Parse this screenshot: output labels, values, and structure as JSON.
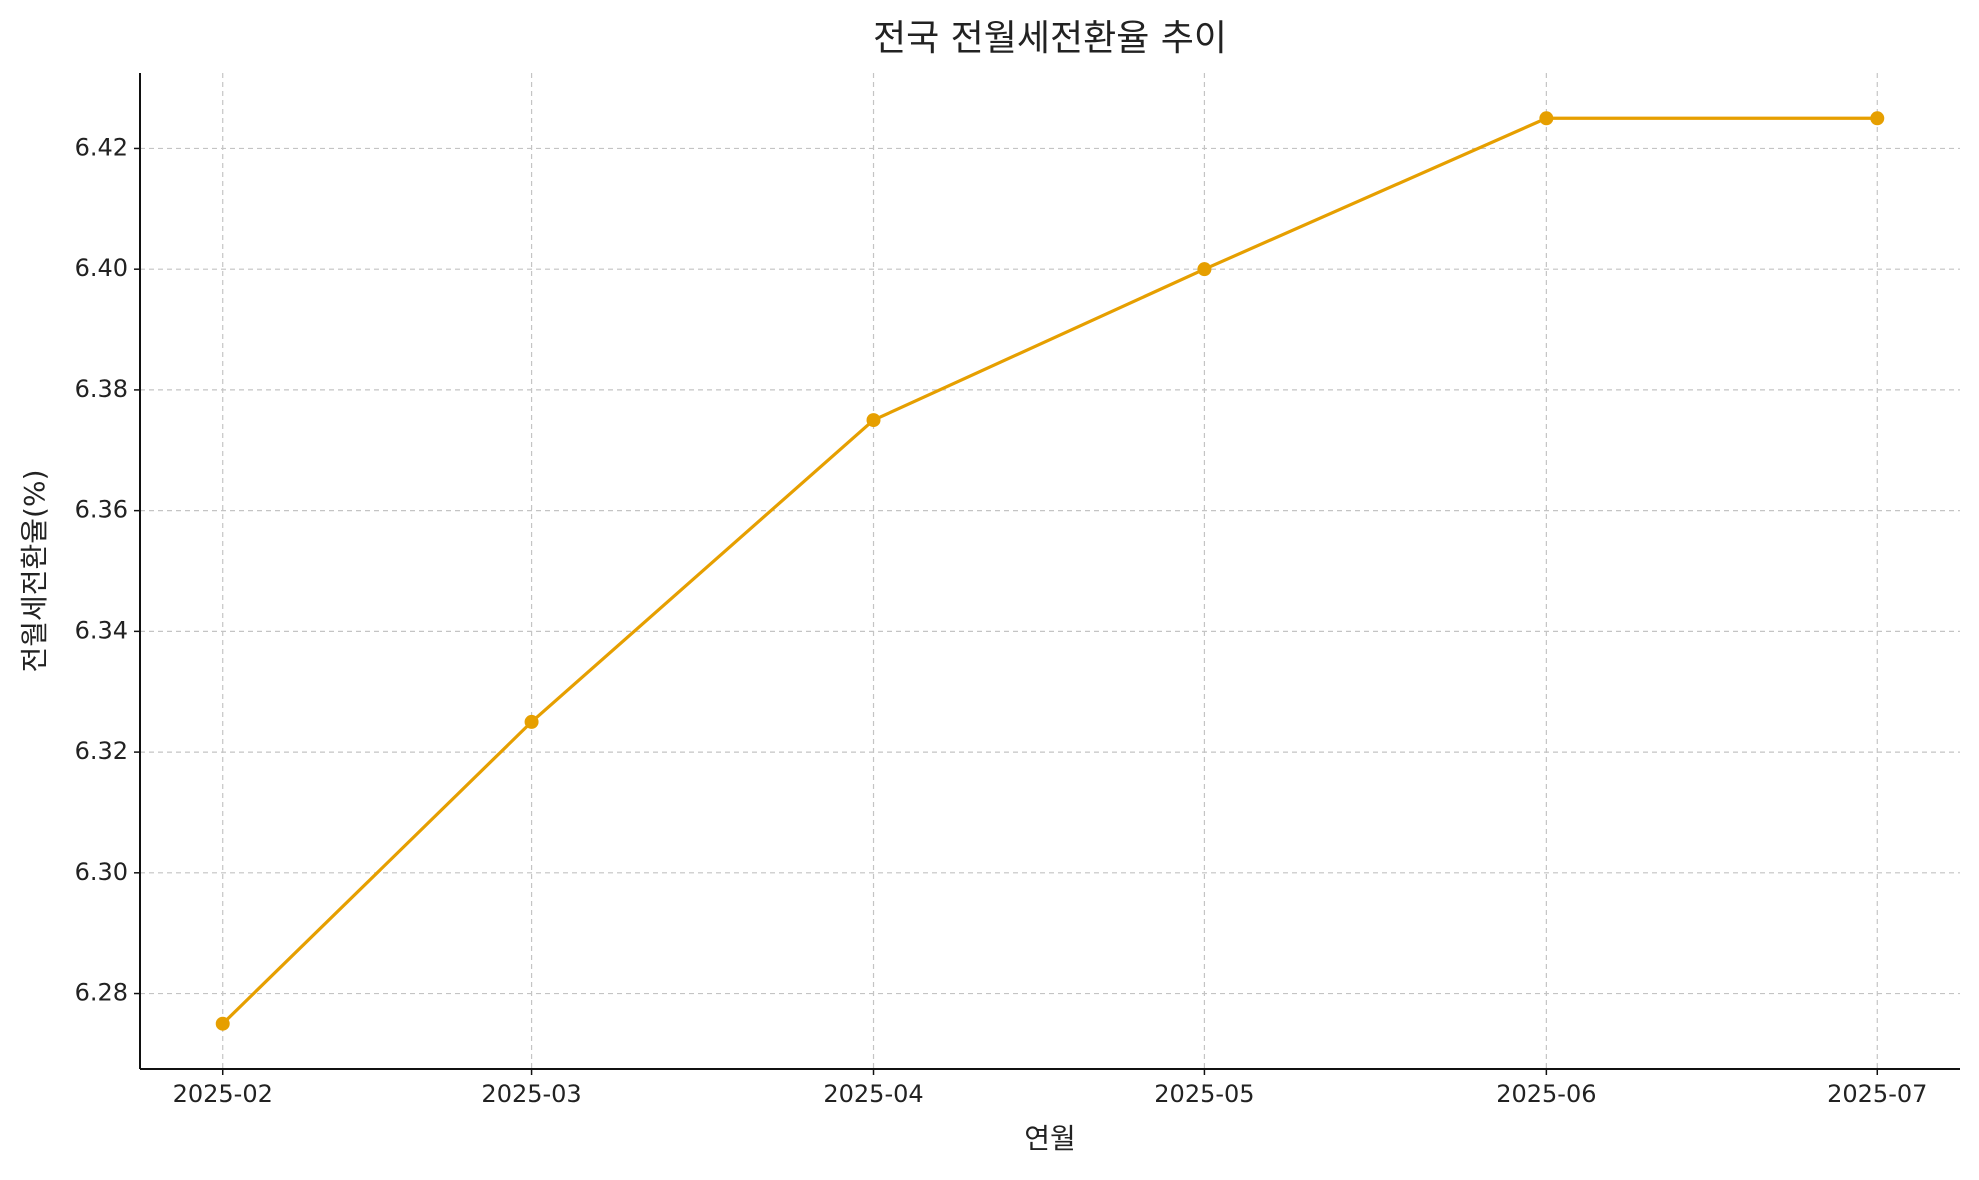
{
  "chart_data": {
    "type": "line",
    "title": "전국 전월세전환율 추이",
    "x_label": "연월",
    "y_label": "전월세전환율(%)",
    "x": [
      "2025-02",
      "2025-03",
      "2025-04",
      "2025-05",
      "2025-06",
      "2025-07"
    ],
    "series": [
      {
        "color": "#e69f00",
        "values": [
          6.275,
          6.325,
          6.375,
          6.4,
          6.425,
          6.425
        ]
      }
    ],
    "ylim": [
      6.2675,
      6.4325
    ],
    "yticks": [
      6.28,
      {
        "value": 6.3,
        "label": "6.30"
      },
      6.32,
      6.34,
      6.36,
      6.38,
      {
        "value": 6.4,
        "label": "6.40"
      },
      6.42
    ],
    "grid": true
  }
}
